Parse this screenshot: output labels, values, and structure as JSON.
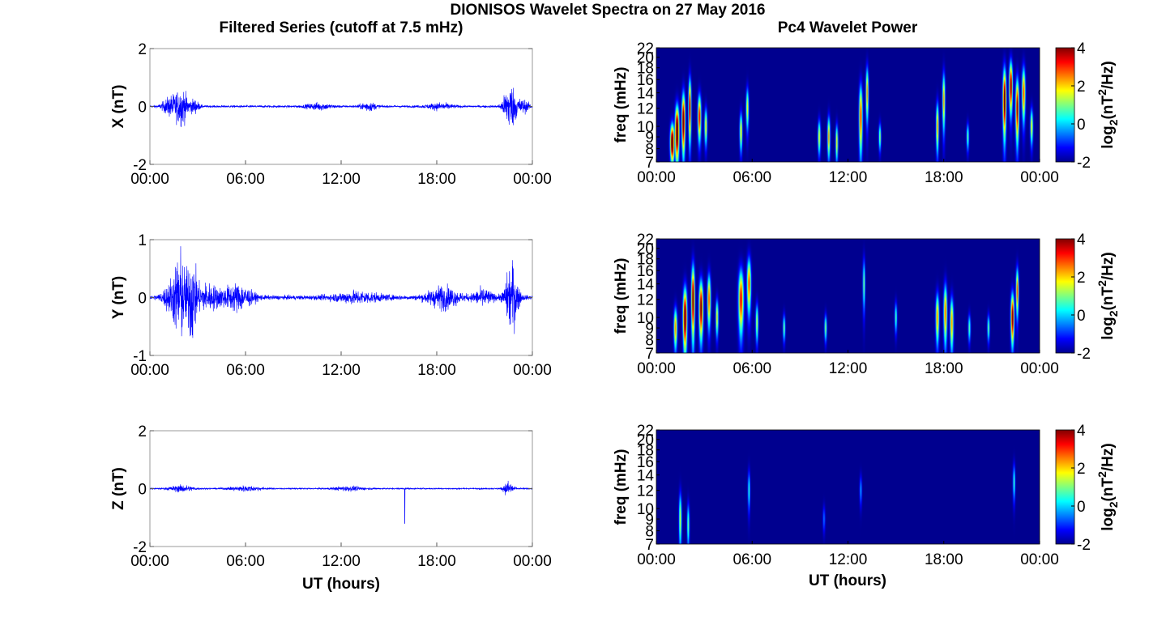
{
  "figure": {
    "suptitle": "DIONISOS Wavelet Spectra on 27 May 2016",
    "left_title": "Filtered Series (cutoff at 7.5 mHz)",
    "right_title": "Pc4 Wavelet Power",
    "xlabel": "UT (hours)"
  },
  "colors": {
    "series_line": "#0000ff",
    "background_power": "#000080",
    "colormap": "jet"
  },
  "chart_data": [
    {
      "type": "line",
      "component": "X",
      "ylabel": "X (nT)",
      "ylim": [
        -2,
        2
      ],
      "yticks": [
        "-2",
        "0",
        "2"
      ],
      "xlim": [
        0,
        24
      ],
      "xticks": [
        "00:00",
        "06:00",
        "12:00",
        "18:00",
        "00:00"
      ],
      "series": [
        {
          "noise_amplitude": 0.05,
          "events": [
            {
              "t": 1.3,
              "amp": 0.45,
              "width": 0.5
            },
            {
              "t": 2.0,
              "amp": 0.8,
              "width": 0.4
            },
            {
              "t": 2.8,
              "amp": 0.3,
              "width": 0.3
            },
            {
              "t": 10.6,
              "amp": 0.15,
              "width": 0.8
            },
            {
              "t": 13.7,
              "amp": 0.2,
              "width": 0.5
            },
            {
              "t": 18.2,
              "amp": 0.15,
              "width": 0.8
            },
            {
              "t": 22.6,
              "amp": 1.1,
              "width": 0.4
            },
            {
              "t": 23.4,
              "amp": 0.3,
              "width": 0.4
            }
          ]
        }
      ]
    },
    {
      "type": "line",
      "component": "Y",
      "ylabel": "Y (nT)",
      "ylim": [
        -1,
        1
      ],
      "yticks": [
        "-1",
        "0",
        "1"
      ],
      "xlim": [
        0,
        24
      ],
      "xticks": [
        "00:00",
        "06:00",
        "12:00",
        "18:00",
        "00:00"
      ],
      "series": [
        {
          "noise_amplitude": 0.05,
          "events": [
            {
              "t": 1.5,
              "amp": 0.45,
              "width": 0.6
            },
            {
              "t": 1.9,
              "amp": 0.8,
              "width": 0.3
            },
            {
              "t": 2.6,
              "amp": 0.95,
              "width": 0.3
            },
            {
              "t": 3.5,
              "amp": 0.3,
              "width": 1.0
            },
            {
              "t": 5.5,
              "amp": 0.3,
              "width": 0.9
            },
            {
              "t": 13.0,
              "amp": 0.12,
              "width": 1.5
            },
            {
              "t": 18.4,
              "amp": 0.25,
              "width": 1.0
            },
            {
              "t": 20.9,
              "amp": 0.18,
              "width": 0.6
            },
            {
              "t": 22.7,
              "amp": 0.8,
              "width": 0.4
            }
          ]
        }
      ]
    },
    {
      "type": "line",
      "component": "Z",
      "ylabel": "Z (nT)",
      "ylim": [
        -2,
        2
      ],
      "yticks": [
        "-2",
        "0",
        "2"
      ],
      "xlim": [
        0,
        24
      ],
      "xticks": [
        "00:00",
        "06:00",
        "12:00",
        "18:00",
        "00:00"
      ],
      "series": [
        {
          "noise_amplitude": 0.03,
          "events": [
            {
              "t": 2.0,
              "amp": 0.15,
              "width": 0.8
            },
            {
              "t": 6.0,
              "amp": 0.12,
              "width": 1.0
            },
            {
              "t": 12.5,
              "amp": 0.1,
              "width": 1.0
            },
            {
              "t": 16.0,
              "amp": -1.2,
              "width": 0.02
            },
            {
              "t": 22.5,
              "amp": 0.35,
              "width": 0.3
            }
          ]
        }
      ]
    },
    {
      "type": "heatmap",
      "component": "X",
      "ylabel": "freq (mHz)",
      "ylim": [
        7,
        22
      ],
      "yticks": [
        "7",
        "8",
        "9",
        "10",
        "12",
        "14",
        "16",
        "18",
        "20",
        "22"
      ],
      "xlim": [
        0,
        24
      ],
      "xticks": [
        "00:00",
        "06:00",
        "12:00",
        "18:00",
        "00:00"
      ],
      "colorbar": {
        "label": "log2(nT^2/Hz)",
        "range": [
          -2,
          4
        ],
        "ticks": [
          "-2",
          "0",
          "2",
          "4"
        ]
      },
      "blobs": [
        {
          "t": 1.0,
          "f": 8.5,
          "p": 5.5,
          "dt": 0.12,
          "df": 2.5
        },
        {
          "t": 1.3,
          "f": 9.5,
          "p": 5.8,
          "dt": 0.12,
          "df": 4.0
        },
        {
          "t": 1.7,
          "f": 10.5,
          "p": 4.8,
          "dt": 0.1,
          "df": 5.0
        },
        {
          "t": 2.1,
          "f": 12.0,
          "p": 4.0,
          "dt": 0.08,
          "df": 6.0
        },
        {
          "t": 2.7,
          "f": 11.0,
          "p": 3.5,
          "dt": 0.1,
          "df": 4.0
        },
        {
          "t": 3.1,
          "f": 10.0,
          "p": 2.0,
          "dt": 0.08,
          "df": 3.0
        },
        {
          "t": 5.3,
          "f": 9.5,
          "p": 2.0,
          "dt": 0.08,
          "df": 3.0
        },
        {
          "t": 5.7,
          "f": 12.0,
          "p": 1.8,
          "dt": 0.08,
          "df": 4.0
        },
        {
          "t": 10.2,
          "f": 9.0,
          "p": 1.8,
          "dt": 0.08,
          "df": 2.5
        },
        {
          "t": 10.8,
          "f": 9.0,
          "p": 2.5,
          "dt": 0.08,
          "df": 3.0
        },
        {
          "t": 11.3,
          "f": 8.5,
          "p": 2.0,
          "dt": 0.07,
          "df": 2.5
        },
        {
          "t": 12.8,
          "f": 11.0,
          "p": 3.2,
          "dt": 0.1,
          "df": 6.0
        },
        {
          "t": 13.2,
          "f": 14.0,
          "p": 2.5,
          "dt": 0.08,
          "df": 6.0
        },
        {
          "t": 14.0,
          "f": 9.0,
          "p": 1.2,
          "dt": 0.07,
          "df": 2.0
        },
        {
          "t": 17.6,
          "f": 10.0,
          "p": 2.5,
          "dt": 0.08,
          "df": 4.0
        },
        {
          "t": 18.0,
          "f": 13.0,
          "p": 2.4,
          "dt": 0.08,
          "df": 6.0
        },
        {
          "t": 19.5,
          "f": 9.0,
          "p": 1.0,
          "dt": 0.07,
          "df": 2.0
        },
        {
          "t": 21.8,
          "f": 13.0,
          "p": 4.8,
          "dt": 0.1,
          "df": 7.0
        },
        {
          "t": 22.2,
          "f": 15.0,
          "p": 4.5,
          "dt": 0.1,
          "df": 6.0
        },
        {
          "t": 22.6,
          "f": 12.0,
          "p": 4.2,
          "dt": 0.1,
          "df": 6.0
        },
        {
          "t": 23.0,
          "f": 14.0,
          "p": 3.0,
          "dt": 0.1,
          "df": 6.0
        },
        {
          "t": 23.5,
          "f": 10.0,
          "p": 1.8,
          "dt": 0.08,
          "df": 3.0
        }
      ]
    },
    {
      "type": "heatmap",
      "component": "Y",
      "ylabel": "freq (mHz)",
      "ylim": [
        7,
        22
      ],
      "yticks": [
        "7",
        "8",
        "9",
        "10",
        "12",
        "14",
        "16",
        "18",
        "20",
        "22"
      ],
      "xlim": [
        0,
        24
      ],
      "xticks": [
        "00:00",
        "06:00",
        "12:00",
        "18:00",
        "00:00"
      ],
      "colorbar": {
        "label": "log2(nT^2/Hz)",
        "range": [
          -2,
          4
        ],
        "ticks": [
          "-2",
          "0",
          "2",
          "4"
        ]
      },
      "blobs": [
        {
          "t": 1.2,
          "f": 9.0,
          "p": 2.5,
          "dt": 0.1,
          "df": 3.0
        },
        {
          "t": 1.8,
          "f": 10.0,
          "p": 5.0,
          "dt": 0.12,
          "df": 5.0
        },
        {
          "t": 2.3,
          "f": 12.0,
          "p": 4.5,
          "dt": 0.1,
          "df": 7.0
        },
        {
          "t": 2.8,
          "f": 11.0,
          "p": 4.5,
          "dt": 0.12,
          "df": 5.0
        },
        {
          "t": 3.3,
          "f": 12.0,
          "p": 3.0,
          "dt": 0.1,
          "df": 5.0
        },
        {
          "t": 3.8,
          "f": 10.0,
          "p": 2.0,
          "dt": 0.08,
          "df": 3.0
        },
        {
          "t": 5.3,
          "f": 12.0,
          "p": 3.5,
          "dt": 0.15,
          "df": 6.0
        },
        {
          "t": 5.8,
          "f": 14.0,
          "p": 3.0,
          "dt": 0.12,
          "df": 6.0
        },
        {
          "t": 6.3,
          "f": 9.5,
          "p": 1.5,
          "dt": 0.08,
          "df": 3.0
        },
        {
          "t": 8.0,
          "f": 9.0,
          "p": 1.0,
          "dt": 0.07,
          "df": 2.0
        },
        {
          "t": 10.6,
          "f": 9.0,
          "p": 1.2,
          "dt": 0.07,
          "df": 2.0
        },
        {
          "t": 13.0,
          "f": 14.0,
          "p": 1.0,
          "dt": 0.07,
          "df": 6.0
        },
        {
          "t": 15.0,
          "f": 10.0,
          "p": 0.8,
          "dt": 0.07,
          "df": 2.5
        },
        {
          "t": 17.6,
          "f": 10.0,
          "p": 2.5,
          "dt": 0.1,
          "df": 4.0
        },
        {
          "t": 18.1,
          "f": 10.5,
          "p": 2.8,
          "dt": 0.1,
          "df": 5.0
        },
        {
          "t": 18.5,
          "f": 9.5,
          "p": 2.5,
          "dt": 0.1,
          "df": 4.0
        },
        {
          "t": 19.6,
          "f": 9.0,
          "p": 1.0,
          "dt": 0.07,
          "df": 2.0
        },
        {
          "t": 20.8,
          "f": 9.0,
          "p": 1.0,
          "dt": 0.07,
          "df": 2.0
        },
        {
          "t": 22.3,
          "f": 10.0,
          "p": 4.5,
          "dt": 0.1,
          "df": 4.0
        },
        {
          "t": 22.6,
          "f": 13.0,
          "p": 3.0,
          "dt": 0.08,
          "df": 5.0
        }
      ]
    },
    {
      "type": "heatmap",
      "component": "Z",
      "ylabel": "freq (mHz)",
      "ylim": [
        7,
        22
      ],
      "yticks": [
        "7",
        "8",
        "9",
        "10",
        "12",
        "14",
        "16",
        "18",
        "20",
        "22"
      ],
      "xlim": [
        0,
        24
      ],
      "xticks": [
        "00:00",
        "06:00",
        "12:00",
        "18:00",
        "00:00"
      ],
      "colorbar": {
        "label": "log2(nT^2/Hz)",
        "range": [
          -2,
          4
        ],
        "ticks": [
          "-2",
          "0",
          "2",
          "4"
        ]
      },
      "blobs": [
        {
          "t": 1.5,
          "f": 9.0,
          "p": 1.5,
          "dt": 0.08,
          "df": 4.0
        },
        {
          "t": 2.0,
          "f": 8.5,
          "p": 1.0,
          "dt": 0.07,
          "df": 3.0
        },
        {
          "t": 5.8,
          "f": 12.0,
          "p": 0.5,
          "dt": 0.07,
          "df": 4.0
        },
        {
          "t": 10.5,
          "f": 9.0,
          "p": -0.5,
          "dt": 0.07,
          "df": 2.0
        },
        {
          "t": 12.8,
          "f": 12.0,
          "p": -0.2,
          "dt": 0.07,
          "df": 3.0
        },
        {
          "t": 22.4,
          "f": 13.0,
          "p": 0.6,
          "dt": 0.07,
          "df": 4.0
        }
      ]
    }
  ]
}
